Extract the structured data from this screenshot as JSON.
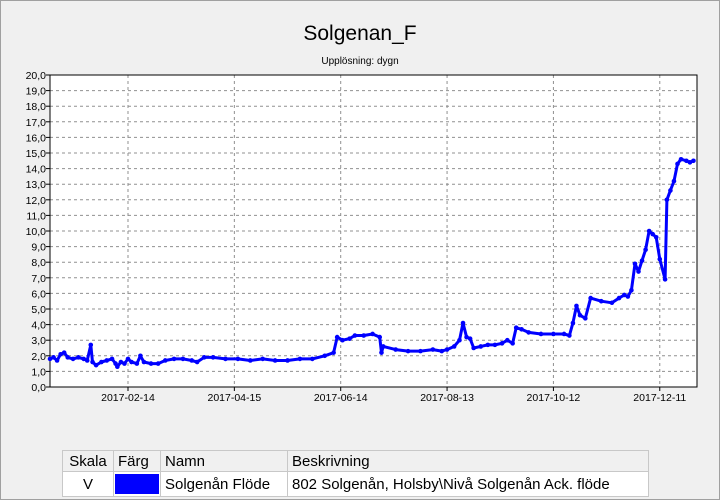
{
  "chart_data": {
    "type": "line",
    "title": "Solgenan_F",
    "subtitle": "Upplösning: dygn",
    "xlabel": "",
    "ylabel": "",
    "x_range": [
      "2017-01-01",
      "2017-12-31"
    ],
    "ylim": [
      0,
      20
    ],
    "y_ticks": [
      "0,0",
      "1,0",
      "2,0",
      "3,0",
      "4,0",
      "5,0",
      "6,0",
      "7,0",
      "8,0",
      "9,0",
      "10,0",
      "11,0",
      "12,0",
      "13,0",
      "14,0",
      "15,0",
      "16,0",
      "17,0",
      "18,0",
      "19,0",
      "20,0"
    ],
    "x_ticks": [
      "2017-02-14",
      "2017-04-15",
      "2017-06-14",
      "2017-08-13",
      "2017-10-12",
      "2017-12-11"
    ],
    "grid": true,
    "series": [
      {
        "name": "Solgenån Flöde",
        "color": "#0000ff",
        "points": [
          [
            "2017-01-01",
            1.8
          ],
          [
            "2017-01-03",
            1.9
          ],
          [
            "2017-01-05",
            1.7
          ],
          [
            "2017-01-07",
            2.1
          ],
          [
            "2017-01-09",
            2.2
          ],
          [
            "2017-01-11",
            1.9
          ],
          [
            "2017-01-14",
            1.8
          ],
          [
            "2017-01-17",
            1.9
          ],
          [
            "2017-01-20",
            1.8
          ],
          [
            "2017-01-22",
            1.7
          ],
          [
            "2017-01-24",
            2.7
          ],
          [
            "2017-01-25",
            1.6
          ],
          [
            "2017-01-27",
            1.4
          ],
          [
            "2017-01-30",
            1.6
          ],
          [
            "2017-02-02",
            1.7
          ],
          [
            "2017-02-05",
            1.8
          ],
          [
            "2017-02-07",
            1.5
          ],
          [
            "2017-02-08",
            1.3
          ],
          [
            "2017-02-10",
            1.6
          ],
          [
            "2017-02-12",
            1.5
          ],
          [
            "2017-02-14",
            1.8
          ],
          [
            "2017-02-16",
            1.6
          ],
          [
            "2017-02-19",
            1.5
          ],
          [
            "2017-02-21",
            2.0
          ],
          [
            "2017-02-23",
            1.6
          ],
          [
            "2017-02-27",
            1.5
          ],
          [
            "2017-03-03",
            1.5
          ],
          [
            "2017-03-07",
            1.7
          ],
          [
            "2017-03-12",
            1.8
          ],
          [
            "2017-03-17",
            1.8
          ],
          [
            "2017-03-22",
            1.7
          ],
          [
            "2017-03-25",
            1.6
          ],
          [
            "2017-03-29",
            1.9
          ],
          [
            "2017-04-03",
            1.9
          ],
          [
            "2017-04-10",
            1.8
          ],
          [
            "2017-04-17",
            1.8
          ],
          [
            "2017-04-24",
            1.7
          ],
          [
            "2017-05-01",
            1.8
          ],
          [
            "2017-05-08",
            1.7
          ],
          [
            "2017-05-15",
            1.7
          ],
          [
            "2017-05-22",
            1.8
          ],
          [
            "2017-05-29",
            1.8
          ],
          [
            "2017-06-05",
            2.0
          ],
          [
            "2017-06-10",
            2.2
          ],
          [
            "2017-06-12",
            3.2
          ],
          [
            "2017-06-15",
            3.0
          ],
          [
            "2017-06-19",
            3.1
          ],
          [
            "2017-06-22",
            3.3
          ],
          [
            "2017-06-27",
            3.3
          ],
          [
            "2017-07-02",
            3.4
          ],
          [
            "2017-07-06",
            3.2
          ],
          [
            "2017-07-07",
            2.2
          ],
          [
            "2017-07-08",
            2.6
          ],
          [
            "2017-07-15",
            2.4
          ],
          [
            "2017-07-22",
            2.3
          ],
          [
            "2017-07-29",
            2.3
          ],
          [
            "2017-08-05",
            2.4
          ],
          [
            "2017-08-10",
            2.3
          ],
          [
            "2017-08-13",
            2.4
          ],
          [
            "2017-08-17",
            2.6
          ],
          [
            "2017-08-20",
            3.0
          ],
          [
            "2017-08-22",
            4.1
          ],
          [
            "2017-08-24",
            3.2
          ],
          [
            "2017-08-26",
            3.1
          ],
          [
            "2017-08-28",
            2.5
          ],
          [
            "2017-09-01",
            2.6
          ],
          [
            "2017-09-05",
            2.7
          ],
          [
            "2017-09-09",
            2.7
          ],
          [
            "2017-09-13",
            2.8
          ],
          [
            "2017-09-16",
            3.0
          ],
          [
            "2017-09-19",
            2.8
          ],
          [
            "2017-09-21",
            3.8
          ],
          [
            "2017-09-24",
            3.7
          ],
          [
            "2017-09-28",
            3.5
          ],
          [
            "2017-10-05",
            3.4
          ],
          [
            "2017-10-12",
            3.4
          ],
          [
            "2017-10-18",
            3.4
          ],
          [
            "2017-10-21",
            3.3
          ],
          [
            "2017-10-23",
            4.1
          ],
          [
            "2017-10-25",
            5.2
          ],
          [
            "2017-10-27",
            4.6
          ],
          [
            "2017-10-30",
            4.4
          ],
          [
            "2017-11-02",
            5.7
          ],
          [
            "2017-11-08",
            5.5
          ],
          [
            "2017-11-14",
            5.4
          ],
          [
            "2017-11-18",
            5.7
          ],
          [
            "2017-11-21",
            5.9
          ],
          [
            "2017-11-23",
            5.8
          ],
          [
            "2017-11-25",
            6.2
          ],
          [
            "2017-11-27",
            7.9
          ],
          [
            "2017-11-29",
            7.4
          ],
          [
            "2017-12-01",
            8.1
          ],
          [
            "2017-12-03",
            8.8
          ],
          [
            "2017-12-05",
            10.0
          ],
          [
            "2017-12-07",
            9.8
          ],
          [
            "2017-12-09",
            9.6
          ],
          [
            "2017-12-11",
            8.2
          ],
          [
            "2017-12-14",
            6.9
          ],
          [
            "2017-12-15",
            12.0
          ],
          [
            "2017-12-17",
            12.6
          ],
          [
            "2017-12-19",
            13.2
          ],
          [
            "2017-12-21",
            14.3
          ],
          [
            "2017-12-23",
            14.6
          ],
          [
            "2017-12-26",
            14.5
          ],
          [
            "2017-12-28",
            14.4
          ],
          [
            "2017-12-30",
            14.5
          ]
        ]
      }
    ]
  },
  "legend": {
    "headers": {
      "skala": "Skala",
      "farg": "Färg",
      "namn": "Namn",
      "beskrivning": "Beskrivning"
    },
    "rows": [
      {
        "skala": "V",
        "color": "#0000ff",
        "namn": "Solgenån Flöde",
        "beskrivning": "802 Solgenån, Holsby\\Nivå Solgenån Ack. flöde"
      }
    ]
  }
}
